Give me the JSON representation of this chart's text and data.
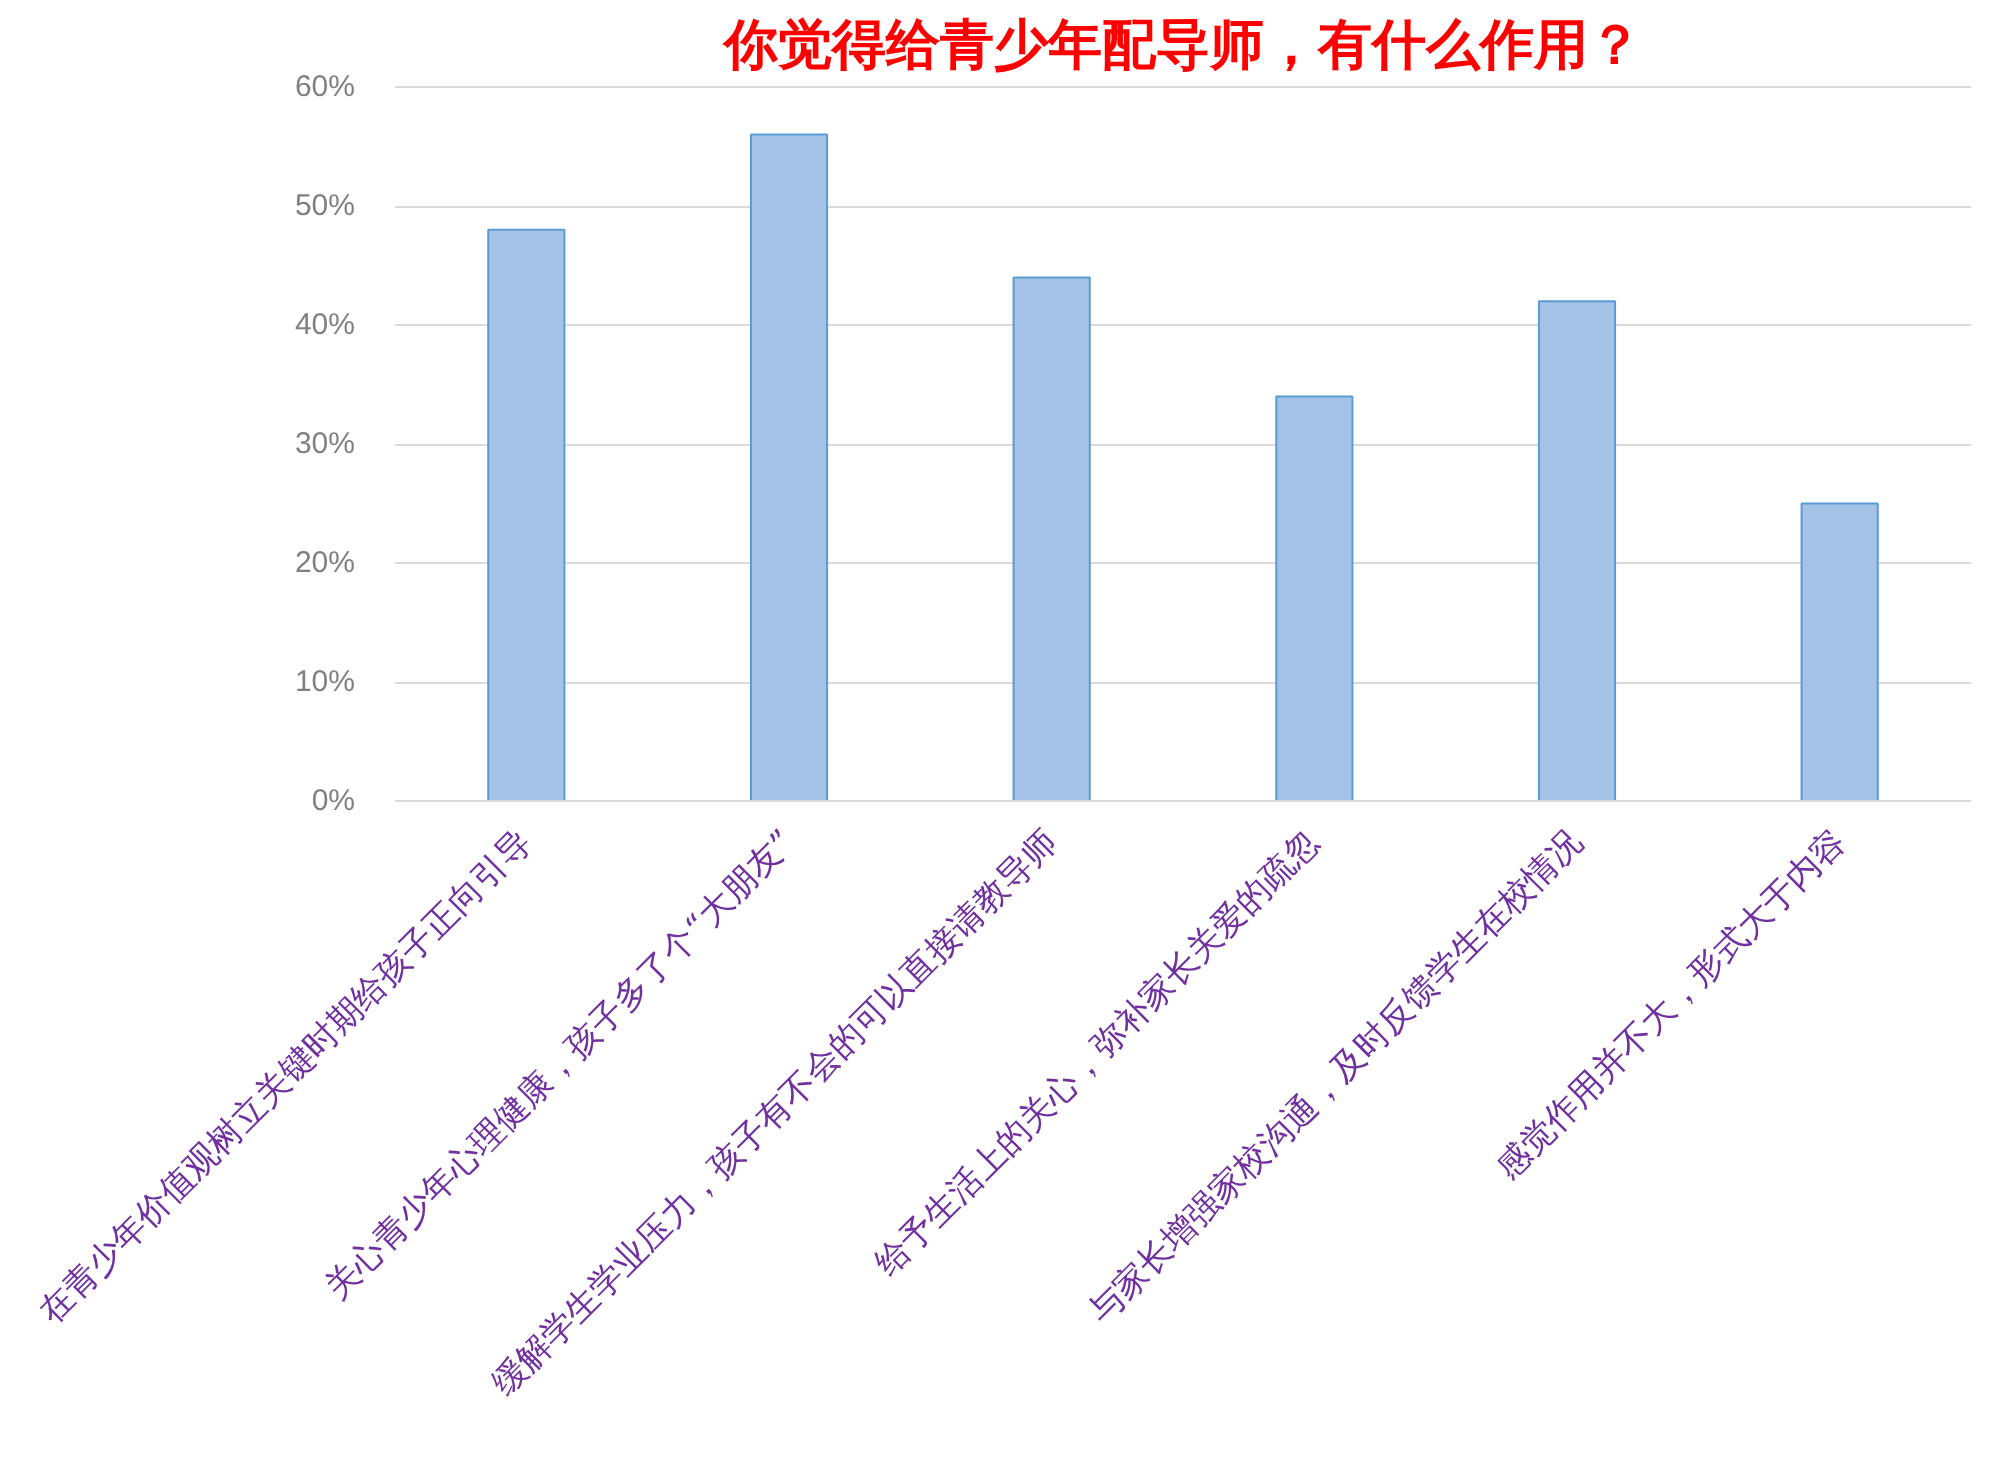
{
  "chart_data": {
    "type": "bar",
    "title": "你觉得给青少年配导师，有什么作用？",
    "categories": [
      "在青少年价值观树立关键时期给孩子正向引导",
      "关心青少年心理健康，孩子多了个“大朋友”",
      "缓解学生学业压力，孩子有不会的可以直接请教导师",
      "给予生活上的关心，弥补家长关爱的疏忽",
      "与家长增强家校沟通，及时反馈学生在校情况",
      "感觉作用并不大，形式大于内容"
    ],
    "values": [
      48,
      56,
      44,
      34,
      42,
      25
    ],
    "color": "#a4c2e6",
    "ylim": [
      0,
      60
    ],
    "yticks": [
      {
        "value": 0,
        "label": "0%"
      },
      {
        "value": 10,
        "label": "10%"
      },
      {
        "value": 20,
        "label": "20%"
      },
      {
        "value": 30,
        "label": "30%"
      },
      {
        "value": 40,
        "label": "40%"
      },
      {
        "value": 50,
        "label": "50%"
      },
      {
        "value": 60,
        "label": "60%"
      }
    ],
    "grid": "y"
  }
}
